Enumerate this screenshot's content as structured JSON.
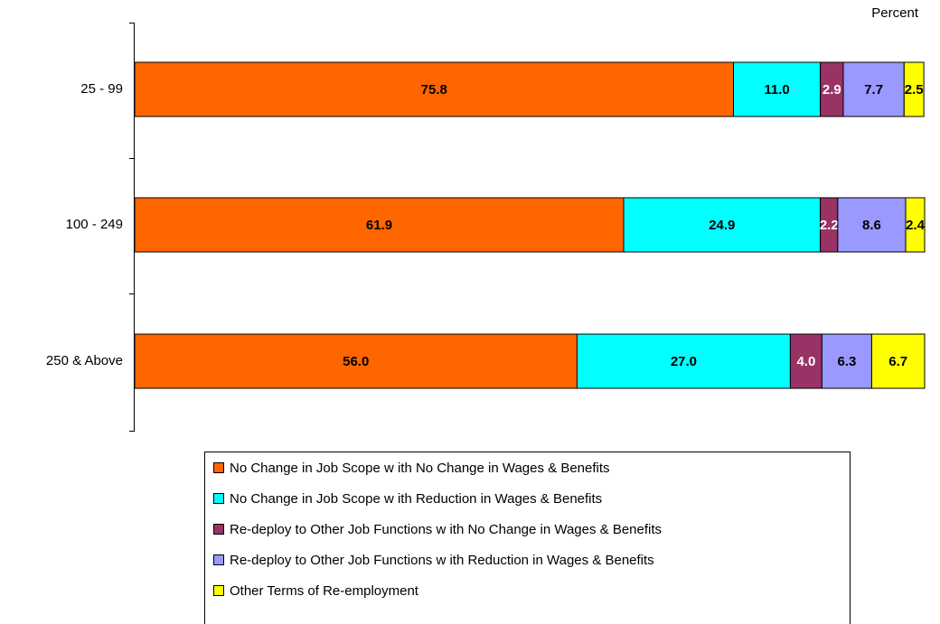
{
  "chart_data": {
    "type": "stacked_barh",
    "axis_label": "Percent",
    "categories": [
      "25 - 99",
      "100 - 249",
      "250 & Above"
    ],
    "xlim": [
      0,
      100
    ],
    "series": [
      {
        "name": "No Change in Job Scope w ith No Change in Wages & Benefits",
        "color": "#FF6600",
        "label_color": "#000000",
        "values": [
          75.8,
          61.9,
          56.0
        ],
        "value_labels": [
          "75.8",
          "61.9",
          "56.0"
        ]
      },
      {
        "name": "No Change in Job Scope w ith Reduction in Wages & Benefits",
        "color": "#00FFFF",
        "label_color": "#000000",
        "values": [
          11.0,
          24.9,
          27.0
        ],
        "value_labels": [
          "11.0",
          "24.9",
          "27.0"
        ]
      },
      {
        "name": "Re-deploy to Other Job Functions w ith No Change in Wages & Benefits",
        "color": "#993366",
        "label_color": "#FFFFFF",
        "values": [
          2.9,
          2.2,
          4.0
        ],
        "value_labels": [
          "2.9",
          "2.2",
          "4.0"
        ]
      },
      {
        "name": "Re-deploy to Other Job Functions w ith Reduction in Wages & Benefits",
        "color": "#9999FF",
        "label_color": "#000000",
        "values": [
          7.7,
          8.6,
          6.3
        ],
        "value_labels": [
          "7.7",
          "8.6",
          "6.3"
        ]
      },
      {
        "name": "Other Terms of Re-employment",
        "color": "#FFFF00",
        "label_color": "#000000",
        "values": [
          2.5,
          2.4,
          6.7
        ],
        "value_labels": [
          "2.5",
          "2.4",
          "6.7"
        ]
      }
    ]
  }
}
